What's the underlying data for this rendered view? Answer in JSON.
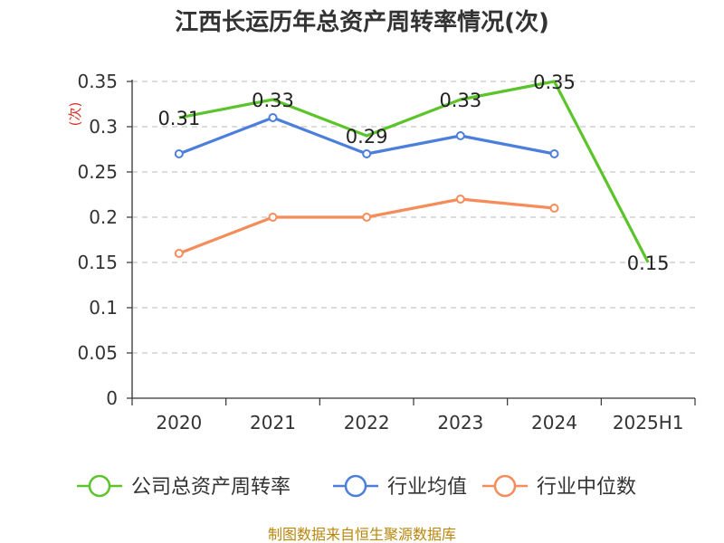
{
  "chart_data": {
    "type": "line",
    "title": "江西长运历年总资产周转率情况(次)",
    "ylabel": "(次)",
    "xlabel": "",
    "categories": [
      "2020",
      "2021",
      "2022",
      "2023",
      "2024",
      "2025H1"
    ],
    "ylim": [
      0,
      0.35
    ],
    "yticks": [
      {
        "value": 0,
        "label": "0"
      },
      {
        "value": 0.05,
        "label": "0.05"
      },
      {
        "value": 0.1,
        "label": "0.1"
      },
      {
        "value": 0.15,
        "label": "0.15"
      },
      {
        "value": 0.2,
        "label": "0.2"
      },
      {
        "value": 0.25,
        "label": "0.25"
      },
      {
        "value": 0.3,
        "label": "0.3"
      },
      {
        "value": 0.35,
        "label": "0.35"
      }
    ],
    "grid": true,
    "legend_position": "bottom",
    "series": [
      {
        "name": "公司总资产周转率",
        "color": "#5cc42b",
        "values": [
          0.31,
          0.33,
          0.29,
          0.33,
          0.35,
          0.15
        ],
        "labels": [
          "0.31",
          "0.33",
          "0.29",
          "0.33",
          "0.35",
          "0.15"
        ]
      },
      {
        "name": "行业均值",
        "color": "#4c7fdb",
        "values": [
          0.27,
          0.31,
          0.27,
          0.29,
          0.27,
          null
        ]
      },
      {
        "name": "行业中位数",
        "color": "#f58c5a",
        "values": [
          0.16,
          0.2,
          0.2,
          0.22,
          0.21,
          null
        ]
      }
    ]
  },
  "source": "制图数据来自恒生聚源数据库"
}
